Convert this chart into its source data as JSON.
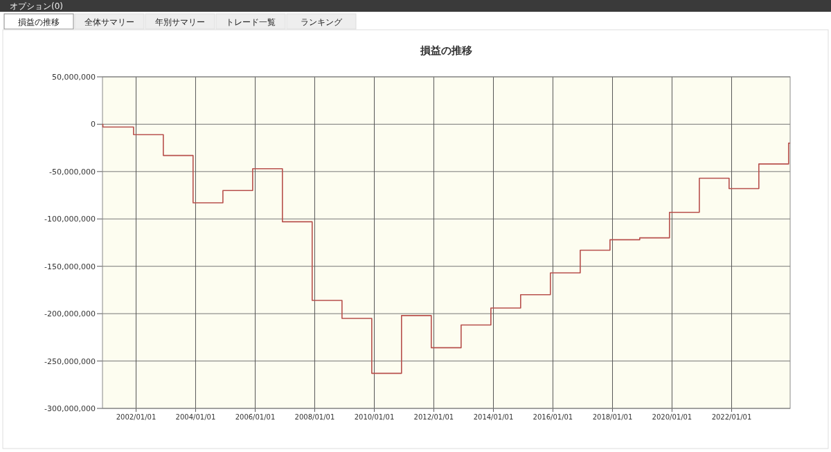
{
  "chart_data": {
    "type": "step",
    "title": "損益の推移",
    "annotations": [
      "オプション(0)",
      "損益の推移",
      "全体サマリー",
      "年別サマリー",
      "トレード一覧",
      "ランキング"
    ],
    "x": [
      "2000-11-15",
      "2000-11-20",
      "2001-12-01",
      "2002-12-01",
      "2003-12-01",
      "2004-12-01",
      "2005-12-01",
      "2006-12-01",
      "2007-12-01",
      "2008-12-01",
      "2009-12-01",
      "2010-12-01",
      "2011-12-01",
      "2012-12-01",
      "2013-12-01",
      "2014-12-01",
      "2015-12-01",
      "2016-12-01",
      "2017-12-01",
      "2018-12-01",
      "2019-12-01",
      "2020-12-01",
      "2021-12-01",
      "2022-12-01",
      "2023-12-01"
    ],
    "series": [
      {
        "color": "#b8504c",
        "values": [
          0,
          -3000000,
          -11000000,
          -33000000,
          -83000000,
          -70000000,
          -47000000,
          -103000000,
          -186000000,
          -205000000,
          -263000000,
          -202000000,
          -236000000,
          -212000000,
          -194000000,
          -180000000,
          -157000000,
          -133000000,
          -122000000,
          -120000000,
          -93000000,
          -57000000,
          -68000000,
          -42000000,
          -20000000
        ]
      }
    ],
    "xlim": [
      "2000-11-15",
      "2023-12-20"
    ],
    "xticks": [
      {
        "value": "2002-01-01",
        "label": "2002/01/01"
      },
      {
        "value": "2004-01-01",
        "label": "2004/01/01"
      },
      {
        "value": "2006-01-01",
        "label": "2006/01/01"
      },
      {
        "value": "2008-01-01",
        "label": "2008/01/01"
      },
      {
        "value": "2010-01-01",
        "label": "2010/01/01"
      },
      {
        "value": "2012-01-01",
        "label": "2012/01/01"
      },
      {
        "value": "2014-01-01",
        "label": "2014/01/01"
      },
      {
        "value": "2016-01-01",
        "label": "2016/01/01"
      },
      {
        "value": "2018-01-01",
        "label": "2018/01/01"
      },
      {
        "value": "2020-01-01",
        "label": "2020/01/01"
      },
      {
        "value": "2022-01-01",
        "label": "2022/01/01"
      }
    ],
    "ylim": [
      -300000000,
      50000000
    ],
    "yticks": [
      {
        "value": 50000000,
        "label": "50,000,000"
      },
      0,
      {
        "value": -50000000,
        "label": "-50,000,000"
      },
      {
        "value": -100000000,
        "label": "-100,000,000"
      },
      {
        "value": -150000000,
        "label": "-150,000,000"
      },
      {
        "value": -200000000,
        "label": "-200,000,000"
      },
      {
        "value": -250000000,
        "label": "-250,000,000"
      },
      {
        "value": -300000000,
        "label": "-300,000,000"
      }
    ],
    "grid": true,
    "line_style": "solid"
  }
}
